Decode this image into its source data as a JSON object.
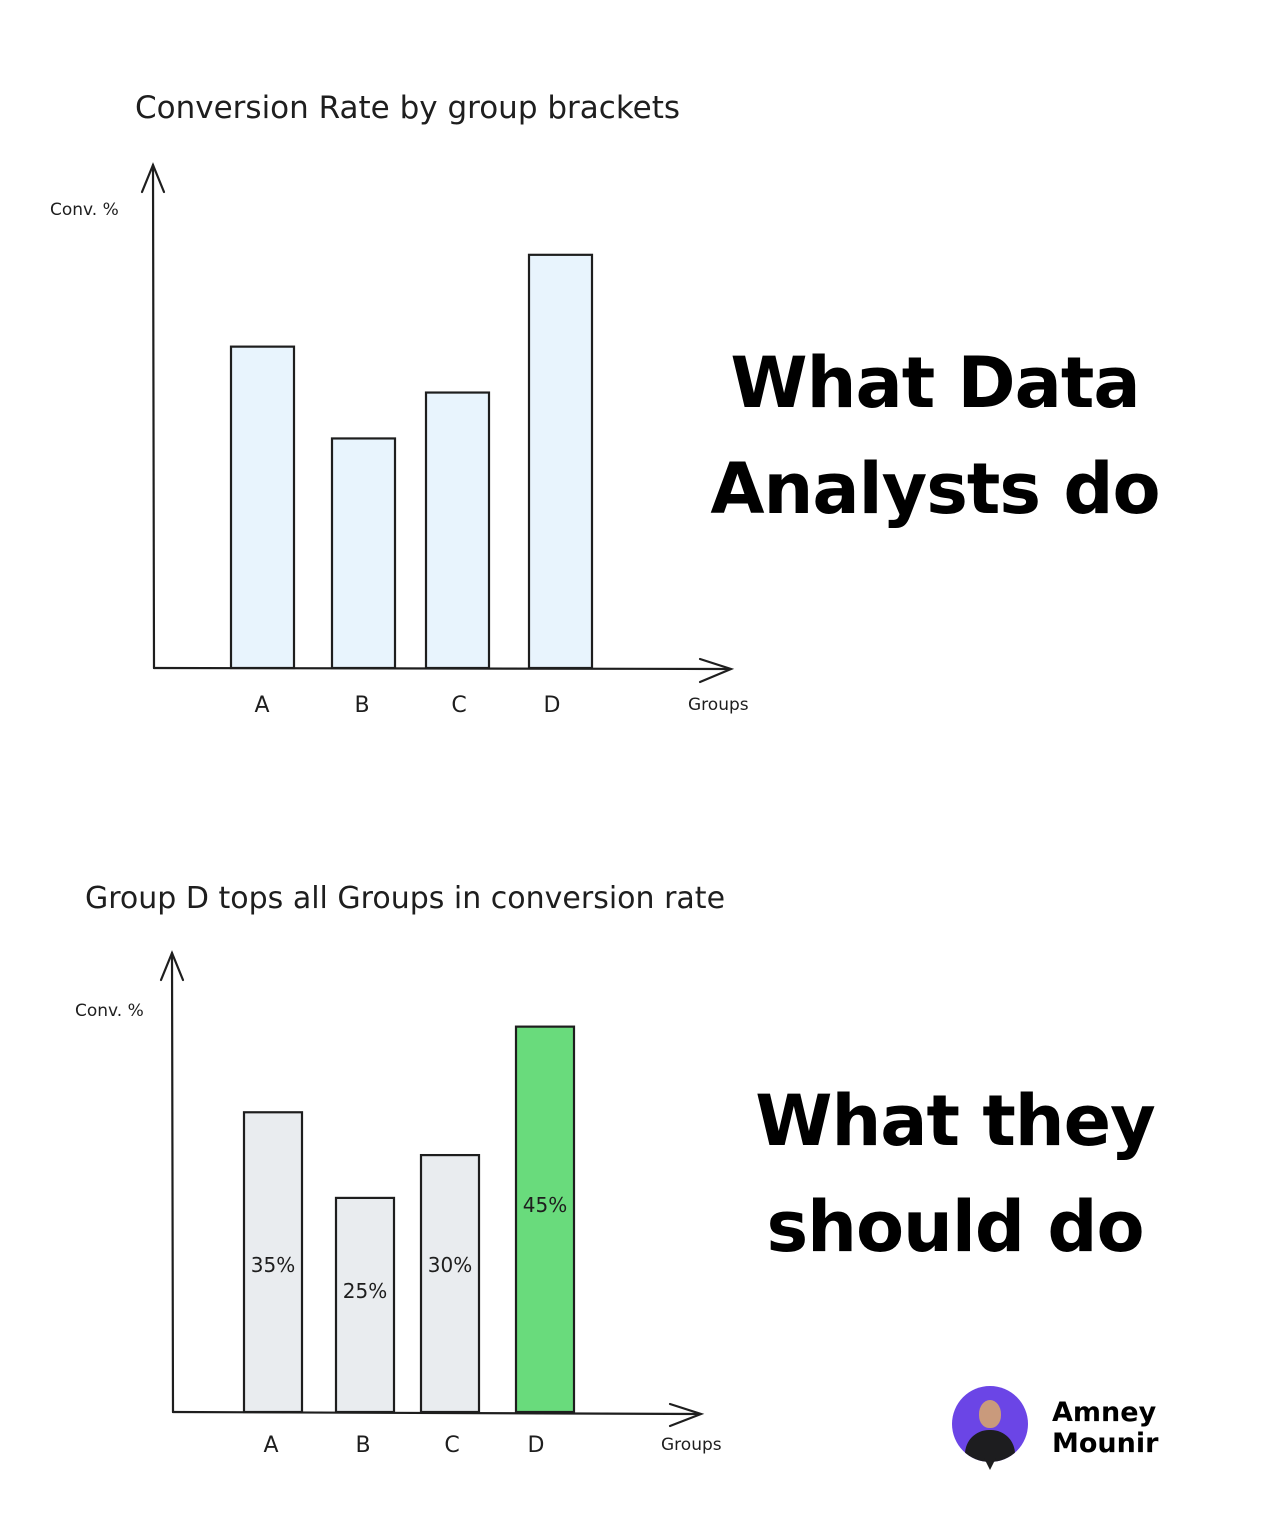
{
  "chart_data": [
    {
      "type": "bar",
      "title": "Conversion Rate by group brackets",
      "ylabel": "Conv. %",
      "xlabel": "Groups",
      "categories": [
        "A",
        "B",
        "C",
        "D"
      ],
      "values": [
        35,
        25,
        30,
        45
      ],
      "ylim": [
        0,
        55
      ],
      "data_labels": false,
      "colors": [
        "#e8f4fd",
        "#e8f4fd",
        "#e8f4fd",
        "#e8f4fd"
      ],
      "grid": false
    },
    {
      "type": "bar",
      "title": "Group D tops all Groups in conversion rate",
      "ylabel": "Conv. %",
      "xlabel": "Groups",
      "categories": [
        "A",
        "B",
        "C",
        "D"
      ],
      "values": [
        35,
        25,
        30,
        45
      ],
      "value_labels": [
        "35%",
        "25%",
        "30%",
        "45%"
      ],
      "ylim": [
        0,
        55
      ],
      "data_labels": true,
      "colors": [
        "#e9ecef",
        "#e9ecef",
        "#e9ecef",
        "#69db7c"
      ],
      "grid": false
    }
  ],
  "headlines": {
    "top": [
      "What Data",
      "Analysts do"
    ],
    "bottom": [
      "What they",
      "should do"
    ]
  },
  "author": {
    "first_name": "Amney",
    "last_name": "Mounir",
    "avatar_color": "#6b45e6"
  }
}
